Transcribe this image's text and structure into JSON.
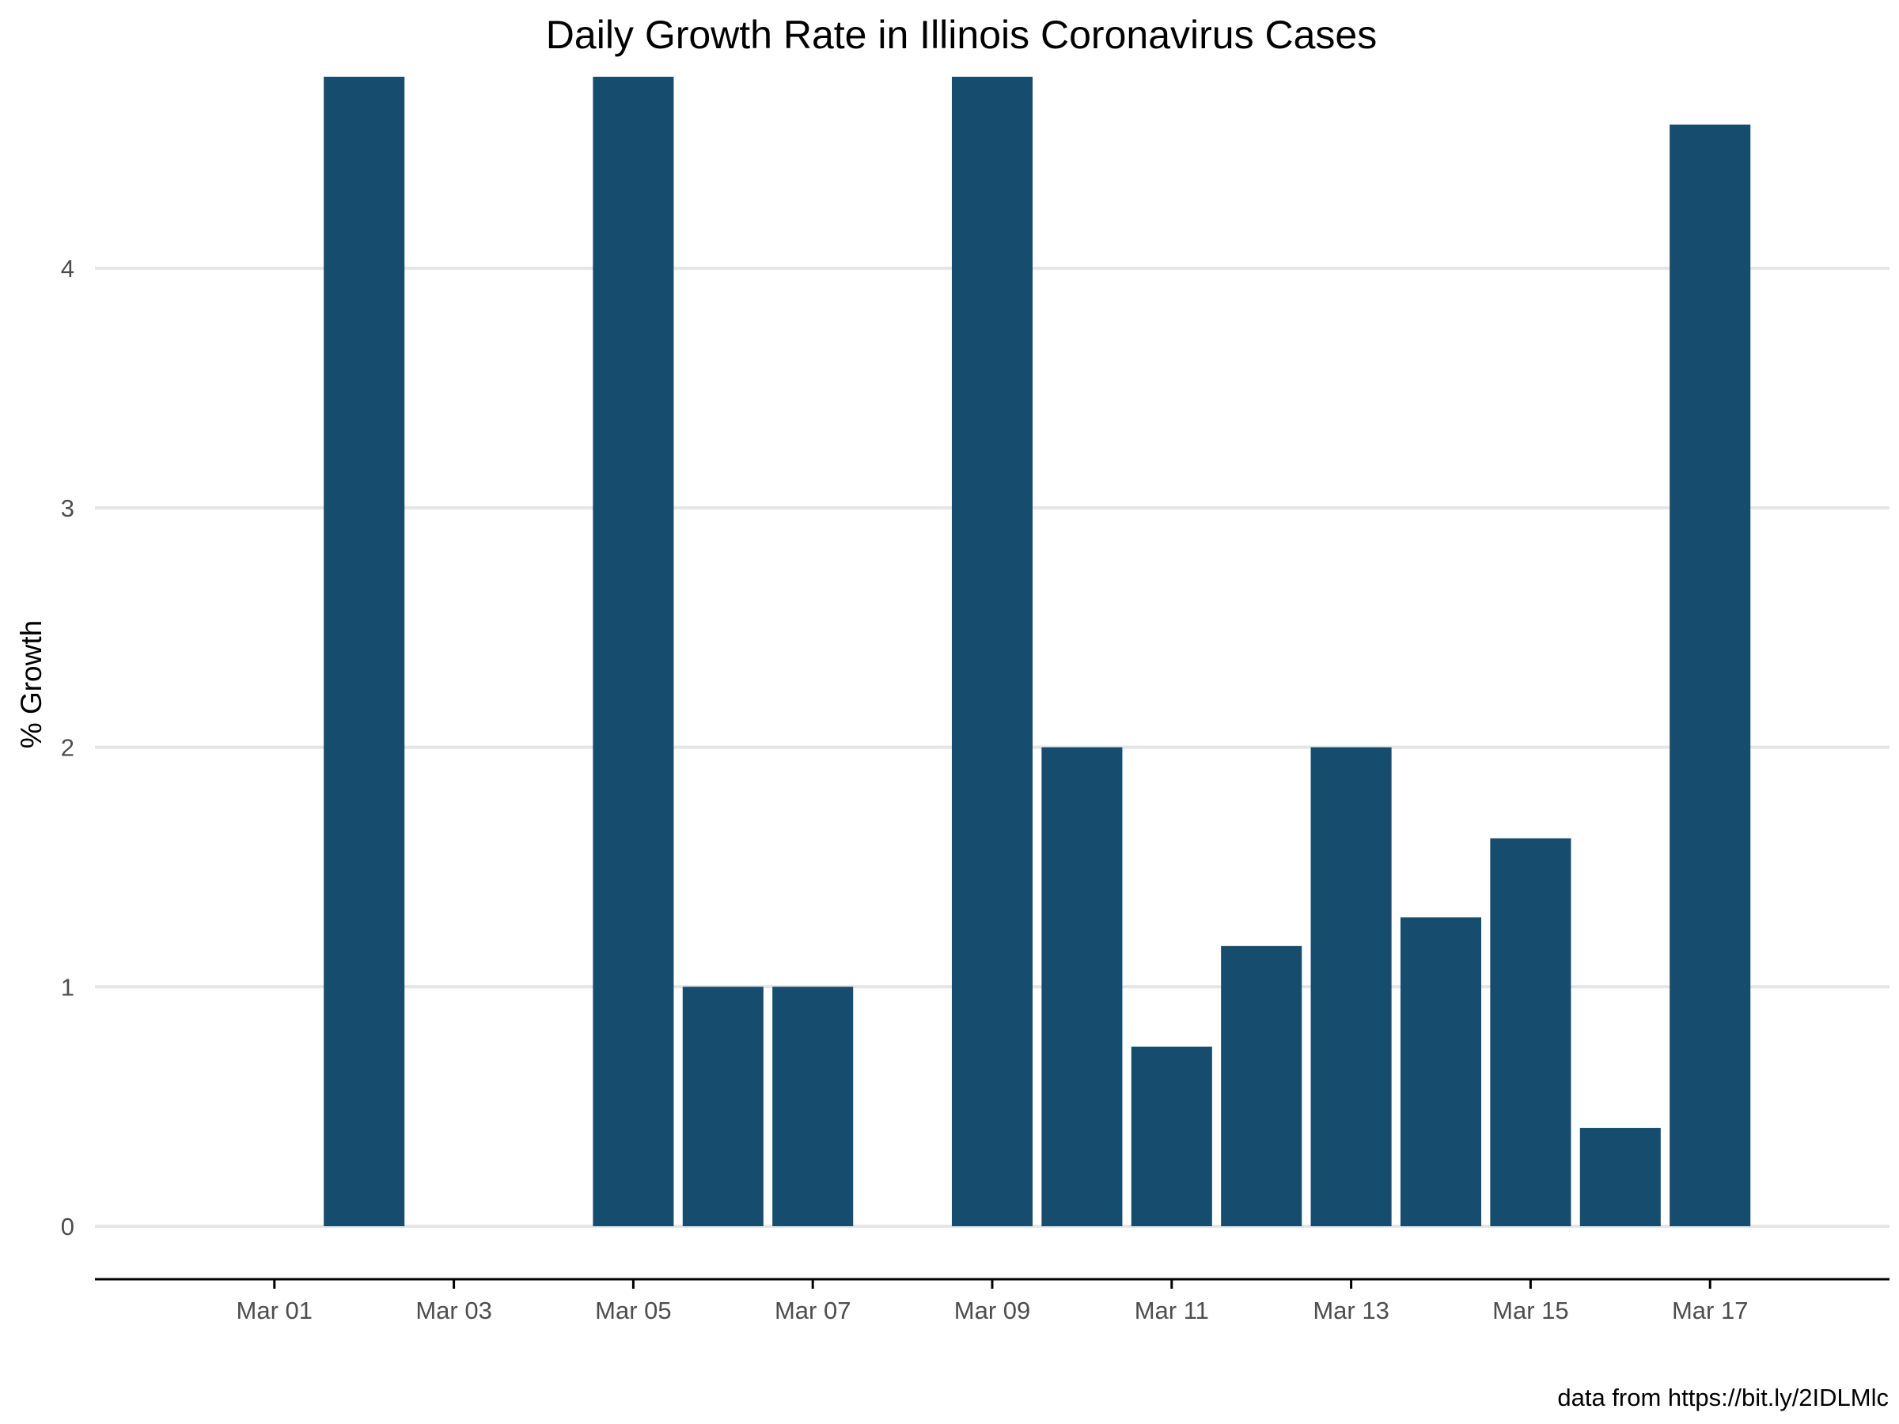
{
  "chart_data": {
    "type": "bar",
    "title": "Daily Growth Rate in Illinois Coronavirus Cases",
    "xlabel": "",
    "ylabel": "% Growth",
    "caption": "data from https://bit.ly/2IDLMlc",
    "x_ticks": [
      "Mar 01",
      "Mar 03",
      "Mar 05",
      "Mar 07",
      "Mar 09",
      "Mar 11",
      "Mar 13",
      "Mar 15",
      "Mar 17"
    ],
    "y_ticks": [
      0,
      1,
      2,
      3,
      4
    ],
    "ylim": [
      -0.23,
      4.8
    ],
    "xlim": [
      "2020-02-28",
      "2020-03-19"
    ],
    "bar_clipped_at_top": true,
    "bar_color": "#164c6e",
    "grid": "horizontal major lines only",
    "categories": [
      "2020-03-02",
      "2020-03-05",
      "2020-03-06",
      "2020-03-07",
      "2020-03-09",
      "2020-03-10",
      "2020-03-11",
      "2020-03-12",
      "2020-03-13",
      "2020-03-14",
      "2020-03-15",
      "2020-03-16",
      "2020-03-17"
    ],
    "values": [
      4.8,
      4.8,
      1.0,
      1.0,
      4.8,
      2.0,
      0.75,
      1.17,
      2.0,
      1.29,
      1.62,
      0.41,
      4.6
    ]
  },
  "colors": {
    "bar": "#164c6e",
    "grid": "#e5e5e5",
    "axis": "#000000",
    "tick_text": "#4d4d4d"
  }
}
